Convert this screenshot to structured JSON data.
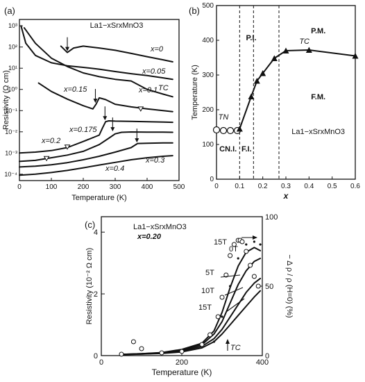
{
  "chart_data": [
    {
      "panel_label": "(a)",
      "type": "line",
      "title": "La1−xSrxMnO3",
      "xlabel": "Temperature (K)",
      "ylabel": "Resistivity (Ω cm)",
      "xlim": [
        0,
        500
      ],
      "ylim": [
        5e-05,
        2000
      ],
      "y_scale": "log",
      "x_ticks": [
        0,
        100,
        200,
        300,
        400,
        500
      ],
      "x_tick_labels": [
        "0",
        "100",
        "200",
        "300",
        "400",
        "500"
      ],
      "y_ticks": [
        0.0001,
        0.001,
        0.01,
        0.1,
        1,
        10,
        100,
        1000
      ],
      "y_tick_labels": [
        "10⁻⁴",
        "10⁻³",
        "10⁻²",
        "10⁻¹",
        "10⁰",
        "10¹",
        "10²",
        "10³"
      ],
      "series": [
        {
          "name": "x=0",
          "x": [
            130,
            150,
            170,
            200,
            250,
            300,
            350,
            400,
            450,
            480
          ],
          "y": [
            110,
            55,
            90,
            110,
            90,
            70,
            50,
            35,
            25,
            20
          ]
        },
        {
          "name": "x=0.05",
          "x": [
            5,
            20,
            50,
            100,
            150,
            200,
            250,
            300,
            350,
            400,
            450,
            480
          ],
          "y": [
            1000,
            150,
            40,
            18,
            13,
            11,
            9,
            7,
            5.5,
            4.5,
            3.5,
            3
          ]
        },
        {
          "name": "x=0.1",
          "x": [
            15,
            50,
            100,
            150,
            200,
            250,
            300,
            350,
            400,
            450,
            480
          ],
          "y": [
            800,
            150,
            30,
            12,
            6,
            4,
            3,
            2.5,
            1,
            0.6,
            0.45
          ]
        },
        {
          "name": "x=0.15",
          "x": [
            60,
            100,
            150,
            200,
            230,
            240,
            250,
            270,
            300,
            350,
            400,
            450,
            480
          ],
          "y": [
            2,
            0.8,
            0.35,
            0.17,
            0.12,
            0.2,
            0.4,
            0.33,
            0.2,
            0.15,
            0.12,
            0.1,
            0.09
          ]
        },
        {
          "name": "x=0.175",
          "x": [
            0,
            50,
            100,
            150,
            200,
            250,
            260,
            270,
            280,
            300,
            350,
            400,
            450,
            480
          ],
          "y": [
            0.001,
            0.0011,
            0.0013,
            0.0018,
            0.0035,
            0.007,
            0.015,
            0.03,
            0.033,
            0.032,
            0.031,
            0.03,
            0.029,
            0.028
          ]
        },
        {
          "name": "x=0.2",
          "x": [
            0,
            50,
            100,
            150,
            200,
            250,
            280,
            300,
            320,
            350,
            400,
            450,
            480
          ],
          "y": [
            0.0004,
            0.00045,
            0.0006,
            0.0008,
            0.0012,
            0.0025,
            0.005,
            0.008,
            0.0095,
            0.0098,
            0.0097,
            0.0096,
            0.0095
          ]
        },
        {
          "name": "x=0.3",
          "x": [
            0,
            50,
            100,
            150,
            200,
            250,
            300,
            350,
            370,
            400,
            450,
            480
          ],
          "y": [
            0.00022,
            0.00024,
            0.00028,
            0.00035,
            0.00048,
            0.0007,
            0.0011,
            0.0018,
            0.0028,
            0.0029,
            0.003,
            0.003
          ]
        },
        {
          "name": "x=0.4",
          "x": [
            0,
            50,
            100,
            150,
            200,
            250,
            300,
            350,
            400,
            450,
            480
          ],
          "y": [
            9e-05,
            0.0001,
            0.00012,
            0.00015,
            0.0002,
            0.00027,
            0.00036,
            0.00048,
            0.0006,
            0.0007,
            0.00075
          ]
        }
      ],
      "arrows": [
        {
          "x": 150,
          "y": 55
        },
        {
          "x": 238,
          "y": 0.2,
          "label": "TC"
        },
        {
          "x": 268,
          "y": 0.03
        },
        {
          "x": 292,
          "y": 0.009
        },
        {
          "x": 368,
          "y": 0.0027
        }
      ],
      "open_triangles": [
        {
          "x": 380,
          "y": 0.12
        },
        {
          "x": 150,
          "y": 0.0019
        },
        {
          "x": 85,
          "y": 0.00055
        }
      ]
    },
    {
      "panel_label": "(b)",
      "type": "line",
      "xlabel": "x",
      "ylabel": "Temperature (K)",
      "xlim": [
        0,
        0.6
      ],
      "ylim": [
        0,
        500
      ],
      "x_ticks": [
        0,
        0.1,
        0.2,
        0.3,
        0.4,
        0.5,
        0.6
      ],
      "x_tick_labels": [
        "0",
        "0.1",
        "0.2",
        "0.3",
        "0.4",
        "0.5",
        "0.6"
      ],
      "y_ticks": [
        0,
        100,
        200,
        300,
        400,
        500
      ],
      "y_tick_labels": [
        "0",
        "100",
        "200",
        "300",
        "400",
        "500"
      ],
      "series": [
        {
          "name": "TN",
          "marker": "open-circle",
          "x": [
            0,
            0.03,
            0.06,
            0.09
          ],
          "y": [
            142,
            140,
            140,
            140
          ]
        },
        {
          "name": "TC",
          "marker": "filled-triangle",
          "x": [
            0.1,
            0.15,
            0.175,
            0.2,
            0.25,
            0.3,
            0.4,
            0.6
          ],
          "y": [
            145,
            238,
            283,
            305,
            348,
            370,
            372,
            355
          ]
        }
      ],
      "boundaries_x": [
        0.1,
        0.16,
        0.27
      ],
      "region_labels": [
        {
          "text": "P.I.",
          "x": 0.15,
          "y": 400
        },
        {
          "text": "P.M.",
          "x": 0.44,
          "y": 420
        },
        {
          "text": "F.M.",
          "x": 0.44,
          "y": 230
        },
        {
          "text": "CN.I.",
          "x": 0.05,
          "y": 80
        },
        {
          "text": "F.I.",
          "x": 0.13,
          "y": 80
        }
      ],
      "annotations": [
        {
          "text": "TN",
          "x": 0.03,
          "y": 172
        },
        {
          "text": "TC",
          "x": 0.38,
          "y": 390
        },
        {
          "text": "La1−xSrxMnO3",
          "x": 0.44,
          "y": 130
        }
      ]
    },
    {
      "panel_label": "(c)",
      "type": "line",
      "title": "La1−xSrxMnO3",
      "subtitle": "x=0.20",
      "xlabel": "Temperature (K)",
      "ylabel": "Resistivity (10⁻² Ω cm)",
      "y2label": "− Δ ρ / ρ (H=0) (%)",
      "xlim": [
        0,
        400
      ],
      "ylim": [
        0,
        4.5
      ],
      "y2lim": [
        0,
        100
      ],
      "x_ticks": [
        0,
        200,
        400
      ],
      "x_tick_labels": [
        "0",
        "200",
        "400"
      ],
      "y_ticks": [
        0,
        2,
        4
      ],
      "y_tick_labels": [
        "0",
        "2",
        "4"
      ],
      "y2_ticks": [
        0,
        50,
        100
      ],
      "y2_tick_labels": [
        "0",
        "50",
        "100"
      ],
      "series": [
        {
          "name": "0T",
          "axis": "left",
          "x": [
            50,
            100,
            150,
            200,
            250,
            280,
            300,
            320,
            340,
            360,
            380,
            395
          ],
          "y": [
            0.04,
            0.06,
            0.1,
            0.2,
            0.4,
            0.8,
            1.4,
            2.2,
            2.9,
            3.35,
            3.5,
            3.4
          ]
        },
        {
          "name": "5T",
          "axis": "left",
          "x": [
            50,
            100,
            150,
            200,
            250,
            280,
            300,
            320,
            340,
            360,
            380,
            395
          ],
          "y": [
            0.04,
            0.06,
            0.09,
            0.18,
            0.35,
            0.7,
            1.1,
            1.7,
            2.3,
            2.75,
            3.05,
            3.15
          ]
        },
        {
          "name": "10T",
          "axis": "left",
          "x": [
            50,
            100,
            150,
            200,
            250,
            280,
            300,
            320,
            340,
            360,
            380,
            395
          ],
          "y": [
            0.04,
            0.05,
            0.08,
            0.15,
            0.3,
            0.55,
            0.85,
            1.25,
            1.65,
            2.05,
            2.35,
            2.5
          ]
        },
        {
          "name": "15T",
          "axis": "left",
          "x": [
            50,
            100,
            150,
            200,
            250,
            280,
            300,
            320,
            340,
            360,
            380,
            395
          ],
          "y": [
            0.03,
            0.05,
            0.07,
            0.12,
            0.25,
            0.45,
            0.7,
            1.0,
            1.3,
            1.6,
            1.9,
            2.1
          ]
        },
        {
          "name": "15T MR",
          "axis": "right",
          "marker": "open-circle",
          "x": [
            50,
            80,
            100,
            150,
            200,
            250,
            270,
            290,
            300,
            310,
            320,
            330,
            340,
            345,
            350,
            360,
            370,
            380,
            390
          ],
          "y": [
            1,
            10,
            5,
            2,
            3,
            8,
            15,
            28,
            42,
            58,
            72,
            80,
            83,
            83,
            82,
            75,
            65,
            57,
            50
          ]
        },
        {
          "name": "0T MR",
          "axis": "right",
          "marker": "dot",
          "x": [
            280,
            300,
            320,
            340,
            360,
            380,
            395
          ],
          "y": [
            10,
            28,
            50,
            70,
            80,
            82,
            80
          ]
        }
      ],
      "curve_labels": [
        "15T",
        "0T",
        "5T",
        "10T",
        "15T"
      ],
      "annotations": [
        {
          "text": "TC",
          "x": 305,
          "y": 0.1
        }
      ]
    }
  ]
}
